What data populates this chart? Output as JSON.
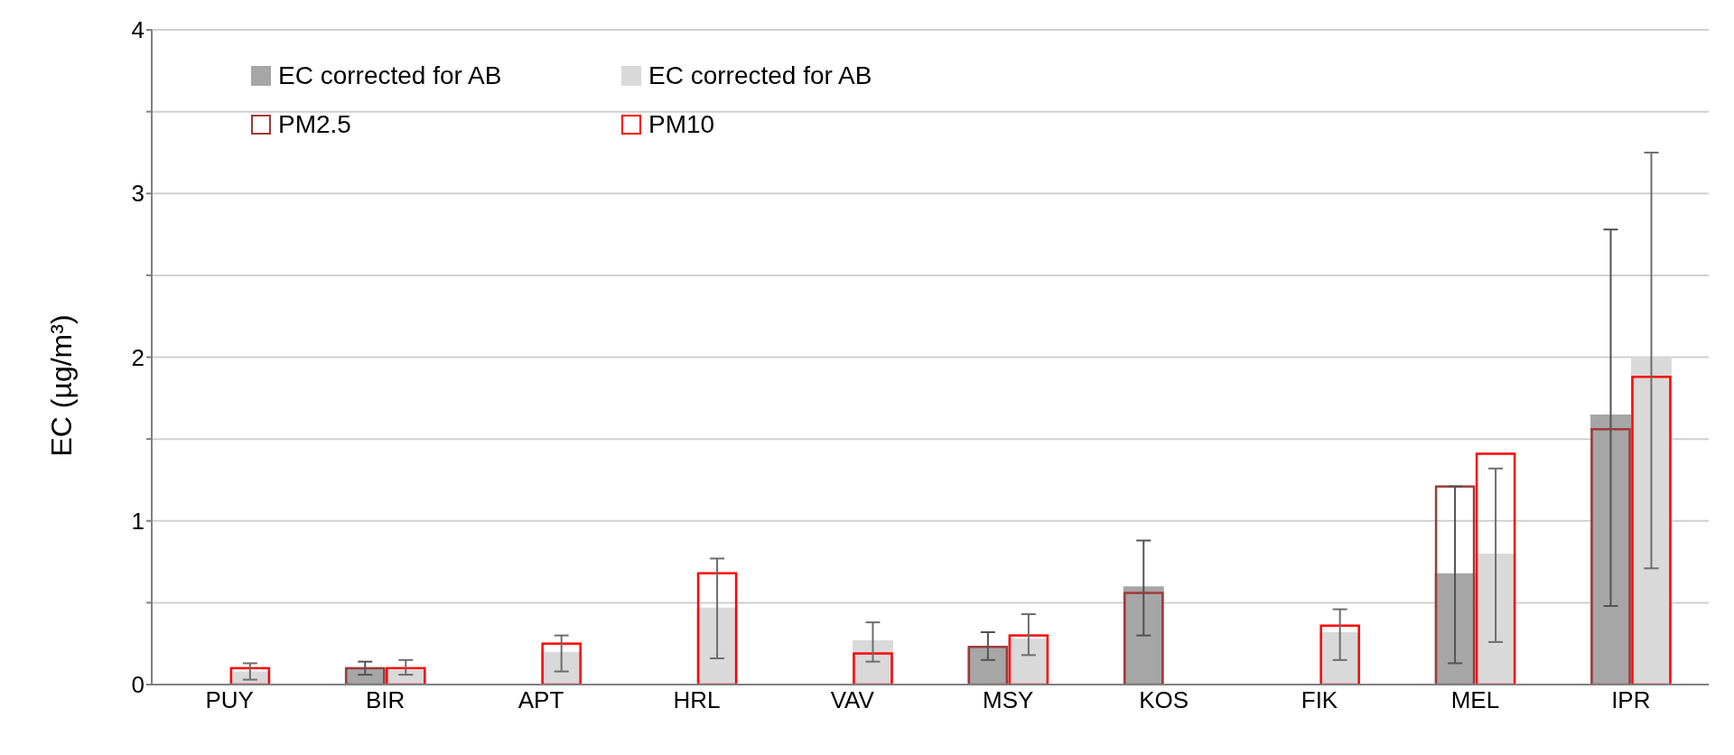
{
  "chart_data": {
    "type": "bar",
    "ylabel": "EC (µg/m³)",
    "categories": [
      "PUY",
      "BIR",
      "APT",
      "HRL",
      "VAV",
      "MSY",
      "KOS",
      "FIK",
      "MEL",
      "IPR"
    ],
    "ylim": [
      0,
      4
    ],
    "yticks": [
      0,
      {
        "value": 0.5,
        "label": null
      },
      1,
      {
        "value": 1.5,
        "label": null
      },
      2,
      {
        "value": 2.5,
        "label": null
      },
      3,
      {
        "value": 3.5,
        "label": null
      },
      4
    ],
    "grid": "y",
    "legend": "top left",
    "series": [
      {
        "name": "EC corrected for AB",
        "color": "#a6a6a6",
        "values": [
          null,
          0.1,
          null,
          null,
          null,
          0.23,
          0.6,
          null,
          0.68,
          1.65
        ],
        "errors": [
          null,
          [
            0.06,
            0.14
          ],
          null,
          null,
          null,
          [
            0.15,
            0.32
          ],
          [
            0.3,
            0.88
          ],
          null,
          [
            0.13,
            1.21
          ],
          [
            0.48,
            2.78
          ]
        ]
      },
      {
        "name": "EC corrected for AB",
        "color": "#d9d9d9",
        "values": [
          0.08,
          0.09,
          0.2,
          0.47,
          0.27,
          0.28,
          null,
          0.32,
          0.8,
          2.0
        ],
        "errors": [
          [
            0.03,
            0.13
          ],
          [
            0.06,
            0.15
          ],
          [
            0.08,
            0.3
          ],
          [
            0.16,
            0.77
          ],
          [
            0.14,
            0.38
          ],
          [
            0.18,
            0.43
          ],
          null,
          [
            0.15,
            0.46
          ],
          [
            0.26,
            1.32
          ],
          [
            0.71,
            3.25
          ]
        ]
      },
      {
        "name": "PM2.5",
        "color": "#9e3a38",
        "values": [
          null,
          0.1,
          null,
          null,
          null,
          0.23,
          0.56,
          null,
          1.21,
          1.56
        ]
      },
      {
        "name": "PM10",
        "color": "#ff0000",
        "values": [
          0.1,
          0.1,
          0.25,
          0.68,
          0.19,
          0.3,
          null,
          0.36,
          1.41,
          1.88
        ]
      }
    ]
  }
}
